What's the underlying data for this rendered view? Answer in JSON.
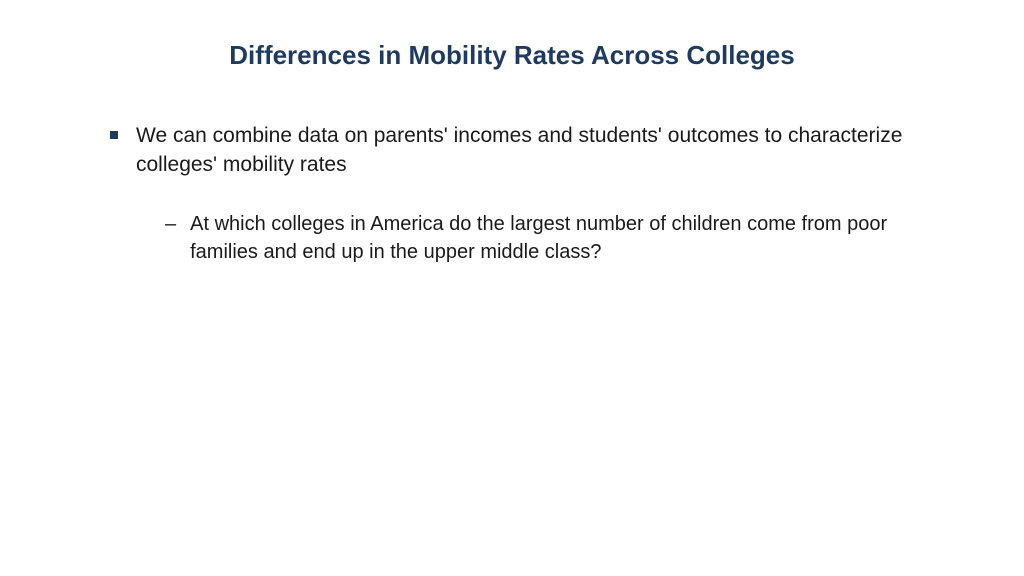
{
  "slide": {
    "title": "Differences in Mobility Rates Across Colleges",
    "title_color": "#1f3a5f",
    "title_fontsize": 26,
    "background_color": "#ffffff",
    "bullets": [
      {
        "text": "We can combine data on parents' incomes and students' outcomes to characterize colleges' mobility rates",
        "bullet_color": "#1f3a5f",
        "text_color": "#1a1a1a",
        "fontsize": 21,
        "sub_bullets": [
          {
            "text": "At which colleges in America do the largest number of children come from poor families and end up in the upper middle class?",
            "text_color": "#1a1a1a",
            "fontsize": 20
          }
        ]
      }
    ]
  }
}
